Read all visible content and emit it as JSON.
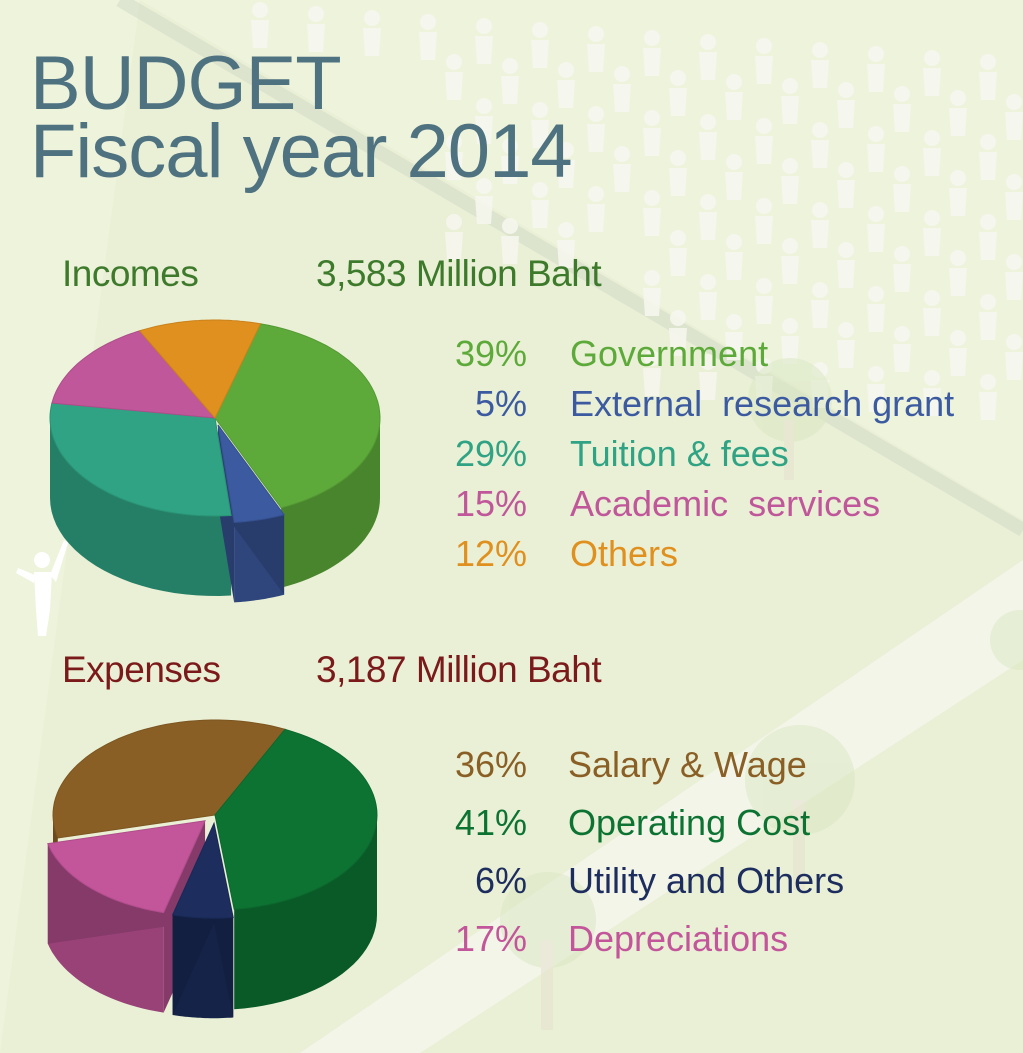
{
  "title": {
    "line1": "BUDGET",
    "line2": "Fiscal year 2014"
  },
  "chart_data": [
    {
      "type": "pie",
      "title": "Incomes",
      "total_label": "3,583 Million Baht",
      "categories": [
        "Government",
        "External  research grant",
        "Tuition & fees",
        "Academic  services",
        "Others"
      ],
      "values": [
        39,
        5,
        29,
        15,
        12
      ],
      "value_labels": [
        "39%",
        "5%",
        "29%",
        "15%",
        "12%"
      ],
      "colors": [
        "#5daa3a",
        "#3c5aa0",
        "#2fa383",
        "#c0579a",
        "#e0901e"
      ],
      "title_color": "#3e7a2c",
      "exploded": [
        "External  research grant"
      ]
    },
    {
      "type": "pie",
      "title": "Expenses",
      "total_label": "3,187 Million Baht",
      "categories": [
        "Salary & Wage",
        "Operating Cost",
        "Utility and Others",
        "Depreciations"
      ],
      "values": [
        36,
        41,
        6,
        17
      ],
      "value_labels": [
        "36%",
        "41%",
        "6%",
        "17%"
      ],
      "colors": [
        "#8a5f25",
        "#0d7333",
        "#1c2d5e",
        "#c3559a"
      ],
      "title_color": "#7b1a1a",
      "exploded": [
        "Utility and Others",
        "Depreciations"
      ]
    }
  ]
}
